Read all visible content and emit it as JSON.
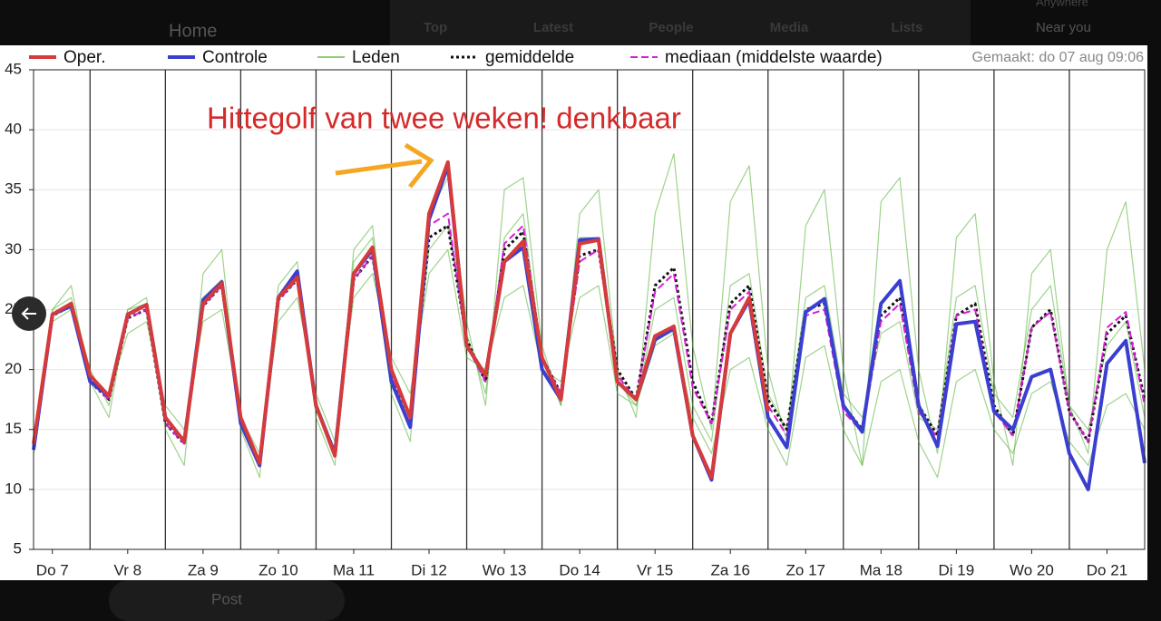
{
  "ui": {
    "home": "Home",
    "tabs": [
      "Top",
      "Latest",
      "People",
      "Media",
      "Lists"
    ],
    "near": "Near you",
    "anywhere": "Anywhere",
    "post": "Post"
  },
  "chart_data": {
    "type": "line",
    "annotation": "Hittegolf van twee weken! denkbaar",
    "made": "Gemaakt: do 07 aug 09:06",
    "xlim": [
      0.25,
      15
    ],
    "ylim": [
      5,
      45
    ],
    "yticks": [
      5,
      10,
      15,
      20,
      25,
      30,
      35,
      40,
      45
    ],
    "xticks": [
      {
        "value": 0.5,
        "label": "Do 7"
      },
      {
        "value": 1.5,
        "label": "Vr 8"
      },
      {
        "value": 2.5,
        "label": "Za 9"
      },
      {
        "value": 3.5,
        "label": "Zo 10"
      },
      {
        "value": 4.5,
        "label": "Ma 11"
      },
      {
        "value": 5.5,
        "label": "Di 12"
      },
      {
        "value": 6.5,
        "label": "Wo 13"
      },
      {
        "value": 7.5,
        "label": "Do 14"
      },
      {
        "value": 8.5,
        "label": "Vr 15"
      },
      {
        "value": 9.5,
        "label": "Za 16"
      },
      {
        "value": 10.5,
        "label": "Zo 17"
      },
      {
        "value": 11.5,
        "label": "Ma 18"
      },
      {
        "value": 12.5,
        "label": "Di 19"
      },
      {
        "value": 13.5,
        "label": "Wo 20"
      },
      {
        "value": 14.5,
        "label": "Do 21"
      }
    ],
    "xgrid": [
      1,
      2,
      3,
      4,
      5,
      6,
      7,
      8,
      9,
      10,
      11,
      12,
      13,
      14
    ],
    "x": [
      0.25,
      0.5,
      0.75,
      1,
      1.25,
      1.5,
      1.75,
      2,
      2.25,
      2.5,
      2.75,
      3,
      3.25,
      3.5,
      3.75,
      4,
      4.25,
      4.5,
      4.75,
      5,
      5.25,
      5.5,
      5.75,
      6,
      6.25,
      6.5,
      6.75,
      7,
      7.25,
      7.5,
      7.75,
      8,
      8.25,
      8.5,
      8.75,
      9,
      9.25,
      9.5,
      9.75,
      10,
      10.25,
      10.5,
      10.75,
      11,
      11.25,
      11.5,
      11.75,
      12,
      12.25,
      12.5,
      12.75,
      13,
      13.25,
      13.5,
      13.75,
      14,
      14.25,
      14.5,
      14.75,
      15
    ],
    "series": [
      {
        "name": "Leden",
        "color": "#4fae2e",
        "members": [
          [
            13,
            25,
            27,
            19,
            16,
            25,
            26,
            15,
            12,
            28,
            30,
            15,
            11,
            27,
            29,
            16,
            12,
            30,
            32,
            18,
            14,
            33,
            36,
            24,
            17,
            35,
            36,
            22,
            17,
            33,
            35,
            20,
            16,
            33,
            38,
            22,
            15,
            34,
            37,
            20,
            14,
            32,
            35,
            20,
            12,
            34,
            36,
            20,
            13,
            31,
            33,
            19,
            12,
            28,
            30,
            17,
            13,
            30,
            34,
            20
          ],
          [
            14,
            24,
            25,
            19,
            18,
            23,
            24,
            17,
            15,
            24,
            25,
            16,
            13,
            24,
            26,
            18,
            14,
            26,
            28,
            21,
            18,
            28,
            30,
            21,
            20,
            26,
            27,
            20,
            19,
            26,
            27,
            18,
            17,
            22,
            23,
            16,
            13,
            20,
            21,
            15,
            12,
            21,
            22,
            15,
            12,
            19,
            20,
            14,
            11,
            19,
            20,
            15,
            13,
            18,
            19,
            14,
            12,
            17,
            18,
            15
          ],
          [
            13.5,
            25,
            26,
            20,
            17,
            25,
            25.5,
            16,
            14,
            26,
            27.5,
            16,
            12,
            26,
            28,
            17,
            13,
            29,
            31,
            20,
            16,
            30,
            32,
            23,
            18,
            31,
            33,
            21,
            17,
            31,
            31,
            19,
            17,
            25,
            26,
            17,
            14,
            27,
            28,
            18,
            15,
            26,
            27,
            18,
            16,
            23,
            24,
            16,
            15,
            26,
            27,
            18,
            16,
            25,
            27,
            17,
            15,
            22,
            24,
            16
          ]
        ]
      },
      {
        "name": "gemiddelde",
        "color": "#111111",
        "values": [
          13.5,
          24.5,
          25.3,
          19,
          17.5,
          24.3,
          25,
          15.5,
          13.8,
          25.3,
          27,
          15.5,
          12.3,
          25.8,
          27.5,
          17,
          13,
          27.5,
          29.5,
          19.5,
          16,
          31,
          32,
          22.5,
          19,
          30,
          31.5,
          21,
          18,
          29.5,
          30,
          20,
          17.5,
          27,
          28.5,
          19,
          15.5,
          25.5,
          27,
          17.5,
          15,
          25,
          25.5,
          17,
          15,
          24.5,
          26,
          17,
          14.5,
          24.5,
          25.5,
          17,
          14.5,
          23.5,
          25,
          16.5,
          14,
          23,
          24.5,
          17.5
        ]
      },
      {
        "name": "mediaan (middelste waarde)",
        "color": "#d41fd4",
        "values": [
          13.5,
          24.5,
          25.3,
          19,
          17.5,
          24.3,
          25,
          15.5,
          13.8,
          25.3,
          27,
          15.5,
          12.3,
          25.8,
          27.5,
          17,
          13,
          27.5,
          29.5,
          19.5,
          16,
          32,
          33,
          22,
          19,
          30.5,
          32,
          21,
          18,
          29,
          30,
          19.5,
          17.5,
          26.5,
          28,
          18.5,
          15.5,
          25,
          26.5,
          17,
          14.5,
          24.5,
          25,
          16.5,
          14.8,
          24,
          25.5,
          16.5,
          14.3,
          24.5,
          25,
          16.5,
          14.5,
          23.5,
          24.8,
          16.5,
          14,
          23.5,
          24.8,
          17
        ]
      },
      {
        "name": "Controle",
        "color": "#3a3fd0",
        "values": [
          13.3,
          24.6,
          25.3,
          19,
          17.8,
          24.6,
          25.4,
          16,
          14,
          25.8,
          27.3,
          15.5,
          12,
          26,
          28.2,
          17,
          13,
          28,
          30,
          19,
          15.2,
          32.5,
          37,
          22,
          19.5,
          29,
          30.2,
          20,
          17.5,
          30.8,
          30.9,
          19,
          17.5,
          22.5,
          23.4,
          14.5,
          10.8,
          23,
          25.8,
          16,
          13.5,
          24.8,
          25.9,
          17,
          14.8,
          25.5,
          27.4,
          17,
          13.6,
          23.8,
          24,
          16.5,
          15,
          19.4,
          20,
          13,
          10,
          20.5,
          22.4,
          12.2
        ]
      },
      {
        "name": "Oper.",
        "color": "#d63a3a",
        "values": [
          13.8,
          24.6,
          25.5,
          19.5,
          17.8,
          24.6,
          25.4,
          16,
          14,
          25.5,
          27.2,
          16,
          12.2,
          26,
          27.7,
          17,
          12.8,
          28,
          30.2,
          20,
          16,
          33,
          37.3,
          22,
          19.5,
          29,
          30.7,
          21,
          17.5,
          30.5,
          30.8,
          19,
          17.5,
          22.8,
          23.6,
          14.5,
          11,
          23,
          26,
          16.5,
          null,
          null,
          null,
          null,
          null,
          null,
          null,
          null,
          null,
          null,
          null,
          null,
          null,
          null,
          null,
          null,
          null,
          null,
          null,
          null
        ]
      }
    ]
  }
}
